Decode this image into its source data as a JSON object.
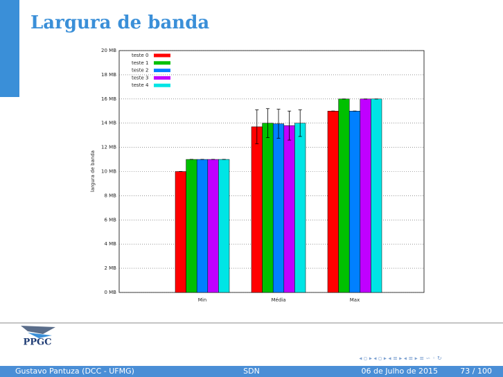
{
  "slide": {
    "title": "Largura de banda",
    "logo": "PPGC",
    "footer": {
      "author": "Gustavo Pantuza (DCC - UFMG)",
      "topic": "SDN",
      "date": "06 de Julho de 2015",
      "page": "73 / 100"
    }
  },
  "chart_data": {
    "type": "bar",
    "ylabel": "largura de banda",
    "categories": [
      "Min",
      "Média",
      "Max"
    ],
    "series": [
      {
        "name": "teste 0",
        "color": "#ff0000",
        "values": [
          10,
          13.7,
          15
        ],
        "errors": [
          0,
          1.4,
          0
        ]
      },
      {
        "name": "teste 1",
        "color": "#00c000",
        "values": [
          11,
          14,
          16
        ],
        "errors": [
          0,
          1.2,
          0
        ]
      },
      {
        "name": "teste 2",
        "color": "#0080ff",
        "values": [
          11,
          13.95,
          15
        ],
        "errors": [
          0,
          1.2,
          0
        ]
      },
      {
        "name": "teste 3",
        "color": "#c000ff",
        "values": [
          11,
          13.8,
          16
        ],
        "errors": [
          0,
          1.2,
          0
        ]
      },
      {
        "name": "teste 4",
        "color": "#00e5e5",
        "values": [
          11,
          14,
          16
        ],
        "errors": [
          0,
          1.1,
          0
        ]
      }
    ],
    "ylim": [
      0,
      20
    ],
    "yticks": [
      {
        "value": 0,
        "label": "0 MB"
      },
      {
        "value": 2,
        "label": "2 MB"
      },
      {
        "value": 4,
        "label": "4 MB"
      },
      {
        "value": 6,
        "label": "6 MB"
      },
      {
        "value": 8,
        "label": "8 MB"
      },
      {
        "value": 10,
        "label": "10 MB"
      },
      {
        "value": 12,
        "label": "12 MB"
      },
      {
        "value": 14,
        "label": "14 MB"
      },
      {
        "value": 16,
        "label": "16 MB"
      },
      {
        "value": 18,
        "label": "18 MB"
      },
      {
        "value": 20,
        "label": "20 MB"
      }
    ],
    "grid": true,
    "legend": "top-left"
  }
}
